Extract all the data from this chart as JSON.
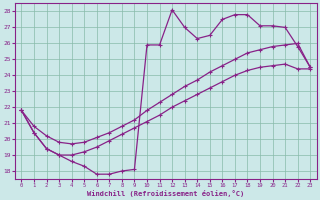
{
  "bg_color": "#cce8e8",
  "grid_color": "#88bbaa",
  "line_color": "#882288",
  "xlabel": "Windchill (Refroidissement éolien,°C)",
  "ylim": [
    17.5,
    28.5
  ],
  "xlim": [
    -0.5,
    23.5
  ],
  "yticks": [
    18,
    19,
    20,
    21,
    22,
    23,
    24,
    25,
    26,
    27,
    28
  ],
  "xticks": [
    0,
    1,
    2,
    3,
    4,
    5,
    6,
    7,
    8,
    9,
    10,
    11,
    12,
    13,
    14,
    15,
    16,
    17,
    18,
    19,
    20,
    21,
    22,
    23
  ],
  "curve_jagged_x": [
    0,
    1,
    2,
    3,
    4,
    5,
    6,
    7,
    8,
    9,
    10,
    11,
    12,
    13,
    14,
    15,
    16,
    17,
    18,
    19,
    20,
    21,
    22,
    23
  ],
  "curve_jagged_y": [
    21.8,
    20.4,
    19.4,
    19.0,
    18.6,
    18.3,
    17.8,
    17.8,
    18.0,
    18.1,
    25.9,
    25.9,
    28.1,
    27.0,
    26.3,
    26.5,
    27.5,
    27.8,
    27.8,
    27.1,
    27.1,
    27.0,
    25.8,
    24.5
  ],
  "curve_upper_straight_x": [
    0,
    1,
    2,
    3,
    4,
    5,
    6,
    7,
    8,
    9,
    10,
    11,
    12,
    13,
    14,
    15,
    16,
    17,
    18,
    19,
    20,
    21,
    22,
    23
  ],
  "curve_upper_straight_y": [
    21.8,
    20.8,
    20.2,
    19.8,
    19.7,
    19.8,
    20.1,
    20.4,
    20.8,
    21.2,
    21.8,
    22.3,
    22.8,
    23.3,
    23.7,
    24.2,
    24.6,
    25.0,
    25.4,
    25.6,
    25.8,
    25.9,
    26.0,
    24.5
  ],
  "curve_lower_straight_x": [
    0,
    1,
    2,
    3,
    4,
    5,
    6,
    7,
    8,
    9,
    10,
    11,
    12,
    13,
    14,
    15,
    16,
    17,
    18,
    19,
    20,
    21,
    22,
    23
  ],
  "curve_lower_straight_y": [
    21.8,
    20.4,
    19.4,
    19.0,
    19.0,
    19.2,
    19.5,
    19.9,
    20.3,
    20.7,
    21.1,
    21.5,
    22.0,
    22.4,
    22.8,
    23.2,
    23.6,
    24.0,
    24.3,
    24.5,
    24.6,
    24.7,
    24.4,
    24.4
  ]
}
